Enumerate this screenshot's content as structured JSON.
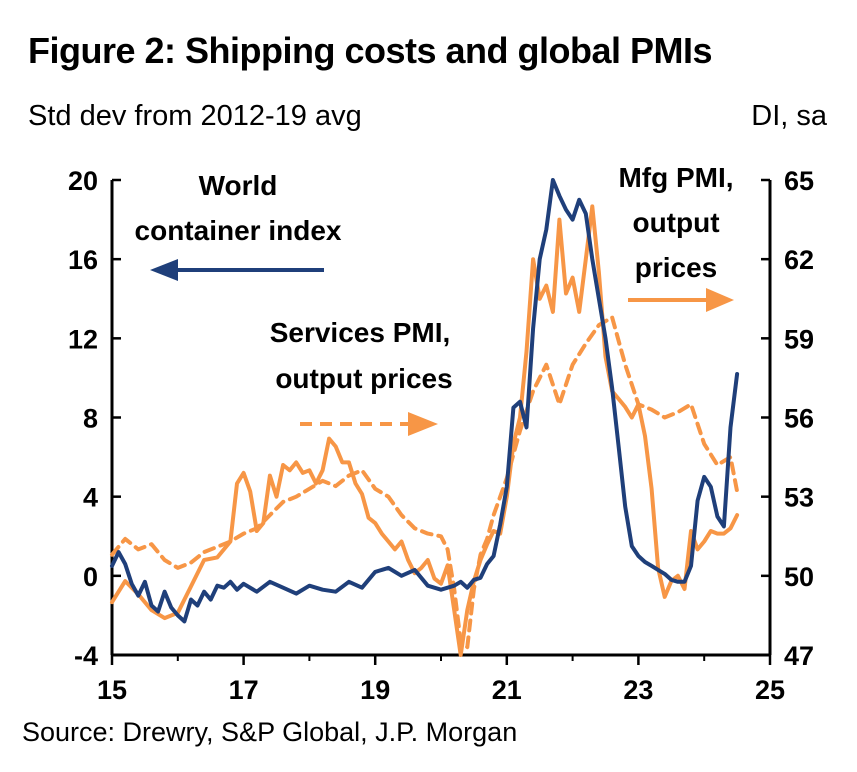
{
  "header": {
    "title": "Figure 2: Shipping costs and global PMIs",
    "left_unit": "Std dev from 2012-19 avg",
    "right_unit": "DI, sa"
  },
  "footer": {
    "source": "Source: Drewry, S&P Global, J.P. Morgan"
  },
  "colors": {
    "wci": "#1f3f7a",
    "pmi": "#f79646"
  },
  "chart_data": {
    "type": "line",
    "x_ticks": [
      "15",
      "17",
      "19",
      "21",
      "23",
      "25"
    ],
    "x_tick_values": [
      2015,
      2017,
      2019,
      2021,
      2023,
      2025
    ],
    "xlim": [
      2015,
      2025
    ],
    "y_left": {
      "label": "Std dev from 2012-19 avg",
      "ticks": [
        "20",
        "16",
        "12",
        "8",
        "4",
        "0",
        "-4"
      ],
      "ylim": [
        -4,
        20
      ]
    },
    "y_right": {
      "label": "DI, sa",
      "ticks": [
        "65",
        "62",
        "59",
        "56",
        "53",
        "50",
        "47"
      ],
      "ylim": [
        47,
        65
      ]
    },
    "annotations": {
      "wci": [
        "World",
        "container index"
      ],
      "services": [
        "Services PMI,",
        "output prices"
      ],
      "mfg": [
        "Mfg PMI,",
        "output",
        "prices"
      ]
    },
    "series": [
      {
        "name": "World container index",
        "axis": "left",
        "style": "solid",
        "x": [
          2015.0,
          2015.1,
          2015.2,
          2015.3,
          2015.4,
          2015.5,
          2015.6,
          2015.7,
          2015.8,
          2015.9,
          2016.0,
          2016.1,
          2016.2,
          2016.3,
          2016.4,
          2016.5,
          2016.6,
          2016.7,
          2016.8,
          2016.9,
          2017.0,
          2017.2,
          2017.4,
          2017.6,
          2017.8,
          2018.0,
          2018.2,
          2018.4,
          2018.6,
          2018.8,
          2019.0,
          2019.2,
          2019.4,
          2019.6,
          2019.8,
          2020.0,
          2020.1,
          2020.2,
          2020.3,
          2020.4,
          2020.5,
          2020.6,
          2020.7,
          2020.8,
          2020.9,
          2021.0,
          2021.1,
          2021.2,
          2021.3,
          2021.4,
          2021.5,
          2021.6,
          2021.7,
          2021.8,
          2021.9,
          2022.0,
          2022.1,
          2022.2,
          2022.3,
          2022.4,
          2022.5,
          2022.6,
          2022.7,
          2022.8,
          2022.9,
          2023.0,
          2023.1,
          2023.2,
          2023.3,
          2023.4,
          2023.5,
          2023.6,
          2023.7,
          2023.8,
          2023.9,
          2024.0,
          2024.1,
          2024.2,
          2024.3,
          2024.4,
          2024.5
        ],
        "values": [
          0.5,
          1.2,
          0.6,
          -0.4,
          -1.0,
          -0.3,
          -1.5,
          -1.8,
          -0.8,
          -1.6,
          -2.0,
          -2.3,
          -1.2,
          -1.5,
          -0.8,
          -1.2,
          -0.5,
          -0.6,
          -0.3,
          -0.7,
          -0.4,
          -0.8,
          -0.3,
          -0.6,
          -0.9,
          -0.5,
          -0.7,
          -0.8,
          -0.3,
          -0.6,
          0.2,
          0.4,
          0.0,
          0.3,
          -0.5,
          -0.7,
          -0.6,
          -0.5,
          -0.3,
          -0.6,
          -0.2,
          -0.1,
          0.6,
          1.0,
          2.6,
          4.5,
          8.5,
          8.8,
          7.5,
          12.5,
          16.0,
          17.5,
          20.0,
          19.2,
          18.5,
          18.0,
          19.0,
          18.3,
          16.0,
          14.0,
          12.0,
          9.5,
          6.5,
          3.5,
          1.5,
          1.0,
          0.7,
          0.5,
          0.3,
          0.1,
          -0.2,
          -0.3,
          -0.3,
          0.5,
          3.8,
          5.0,
          4.5,
          3.0,
          2.5,
          7.5,
          10.2
        ]
      },
      {
        "name": "Services PMI, output prices",
        "axis": "right",
        "style": "dashed",
        "x": [
          2015.0,
          2015.2,
          2015.4,
          2015.6,
          2015.8,
          2016.0,
          2016.2,
          2016.4,
          2016.6,
          2016.8,
          2017.0,
          2017.2,
          2017.4,
          2017.6,
          2017.8,
          2018.0,
          2018.2,
          2018.4,
          2018.6,
          2018.8,
          2019.0,
          2019.2,
          2019.4,
          2019.6,
          2019.8,
          2020.0,
          2020.1,
          2020.2,
          2020.3,
          2020.4,
          2020.5,
          2020.6,
          2020.7,
          2020.8,
          2020.9,
          2021.0,
          2021.2,
          2021.4,
          2021.6,
          2021.8,
          2022.0,
          2022.2,
          2022.4,
          2022.6,
          2022.8,
          2023.0,
          2023.2,
          2023.4,
          2023.6,
          2023.8,
          2024.0,
          2024.2,
          2024.4,
          2024.5
        ],
        "values": [
          50.8,
          51.4,
          51.0,
          51.2,
          50.6,
          50.3,
          50.5,
          50.9,
          51.1,
          51.3,
          51.6,
          51.8,
          52.3,
          52.8,
          53.0,
          53.3,
          53.6,
          53.4,
          53.8,
          54.0,
          53.3,
          53.0,
          52.3,
          51.8,
          51.6,
          51.5,
          51.0,
          49.5,
          47.5,
          47.3,
          49.5,
          50.8,
          51.4,
          52.3,
          53.0,
          53.7,
          55.5,
          57.0,
          58.0,
          56.5,
          58.0,
          58.8,
          59.5,
          59.8,
          58.0,
          56.5,
          56.3,
          56.0,
          56.2,
          56.5,
          55.0,
          54.2,
          54.5,
          53.2
        ]
      },
      {
        "name": "Mfg PMI, output prices",
        "axis": "right",
        "style": "solid",
        "x": [
          2015.0,
          2015.2,
          2015.4,
          2015.6,
          2015.8,
          2016.0,
          2016.2,
          2016.4,
          2016.6,
          2016.8,
          2016.9,
          2017.0,
          2017.1,
          2017.2,
          2017.3,
          2017.4,
          2017.5,
          2017.6,
          2017.7,
          2017.8,
          2017.9,
          2018.0,
          2018.1,
          2018.2,
          2018.3,
          2018.4,
          2018.5,
          2018.6,
          2018.7,
          2018.8,
          2018.9,
          2019.0,
          2019.1,
          2019.2,
          2019.3,
          2019.4,
          2019.5,
          2019.6,
          2019.7,
          2019.8,
          2019.9,
          2020.0,
          2020.1,
          2020.2,
          2020.3,
          2020.4,
          2020.5,
          2020.6,
          2020.7,
          2020.8,
          2020.9,
          2021.0,
          2021.1,
          2021.2,
          2021.3,
          2021.4,
          2021.5,
          2021.6,
          2021.7,
          2021.8,
          2021.9,
          2022.0,
          2022.1,
          2022.2,
          2022.3,
          2022.4,
          2022.5,
          2022.6,
          2022.7,
          2022.8,
          2022.9,
          2023.0,
          2023.1,
          2023.2,
          2023.3,
          2023.4,
          2023.5,
          2023.6,
          2023.7,
          2023.8,
          2023.9,
          2024.0,
          2024.1,
          2024.2,
          2024.3,
          2024.4,
          2024.5
        ],
        "values": [
          49.0,
          49.8,
          49.3,
          48.7,
          48.4,
          48.6,
          49.6,
          50.6,
          50.7,
          51.3,
          53.5,
          53.9,
          53.2,
          51.7,
          52.0,
          53.8,
          53.0,
          54.2,
          54.0,
          54.3,
          53.9,
          54.0,
          53.5,
          54.0,
          55.2,
          54.9,
          54.3,
          54.3,
          53.5,
          53.1,
          52.2,
          52.0,
          51.6,
          51.3,
          51.0,
          51.3,
          50.6,
          50.1,
          50.3,
          50.6,
          49.9,
          49.7,
          50.4,
          48.7,
          47.0,
          48.7,
          49.8,
          50.6,
          51.2,
          51.7,
          51.6,
          53.0,
          55.0,
          56.0,
          58.5,
          62.0,
          60.5,
          61.0,
          60.0,
          63.5,
          60.7,
          61.3,
          60.0,
          62.0,
          64.0,
          61.5,
          58.3,
          57.0,
          56.7,
          56.4,
          56.0,
          56.5,
          55.3,
          53.3,
          50.3,
          49.2,
          49.8,
          50.0,
          49.5,
          51.7,
          51.0,
          51.3,
          51.7,
          51.6,
          51.6,
          51.8,
          52.3
        ]
      }
    ]
  }
}
